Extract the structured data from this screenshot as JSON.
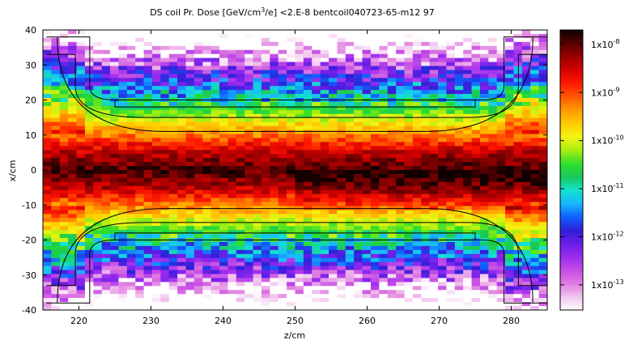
{
  "chart_data": {
    "type": "heatmap",
    "title": {
      "prefix": "DS coil Pr. Dose [GeV/cm",
      "sup": "3",
      "suffix": "/e] <2.E-8  bentcoil040723-65-m12 97"
    },
    "xlabel": "z/cm",
    "ylabel": "x/cm",
    "xlim": [
      215,
      285
    ],
    "ylim": [
      -40,
      40
    ],
    "x_ticks": [
      "220",
      "230",
      "240",
      "250",
      "260",
      "270",
      "280"
    ],
    "y_ticks": [
      "40",
      "30",
      "20",
      "10",
      "0",
      "-10",
      "-20",
      "-30",
      "-40"
    ],
    "colorbar": {
      "scale": "log",
      "range": [
        3e-14,
        2e-08
      ],
      "tick_labels": [
        {
          "base": "1x10",
          "exp": "-8",
          "value": 1e-08
        },
        {
          "base": "1x10",
          "exp": "-9",
          "value": 1e-09
        },
        {
          "base": "1x10",
          "exp": "-10",
          "value": 1e-10
        },
        {
          "base": "1x10",
          "exp": "-11",
          "value": 1e-11
        },
        {
          "base": "1x10",
          "exp": "-12",
          "value": 1e-12
        },
        {
          "base": "1x10",
          "exp": "-13",
          "value": 1e-13
        }
      ],
      "palette": [
        "#ffffff",
        "#f2c6ee",
        "#e07de0",
        "#c64fe6",
        "#9a2cf0",
        "#6a1ee8",
        "#3020d8",
        "#1060ff",
        "#18b6ff",
        "#14e2d0",
        "#18c85a",
        "#2ee02a",
        "#a6ee10",
        "#f4f414",
        "#ffcc00",
        "#ff9a00",
        "#ff5a00",
        "#ff1a00",
        "#d80000",
        "#9c0000",
        "#5a0000",
        "#100000"
      ]
    },
    "grid": {
      "nz": 60,
      "nx": 70
    },
    "dose_model": "Log10 of dose decreases away from x=0; dense core |x|<5 cm near 1e-8, ~1e-9 at |x|~15 cm, ~1e-12 at |x|~30 cm; coil outline drawn in black."
  }
}
